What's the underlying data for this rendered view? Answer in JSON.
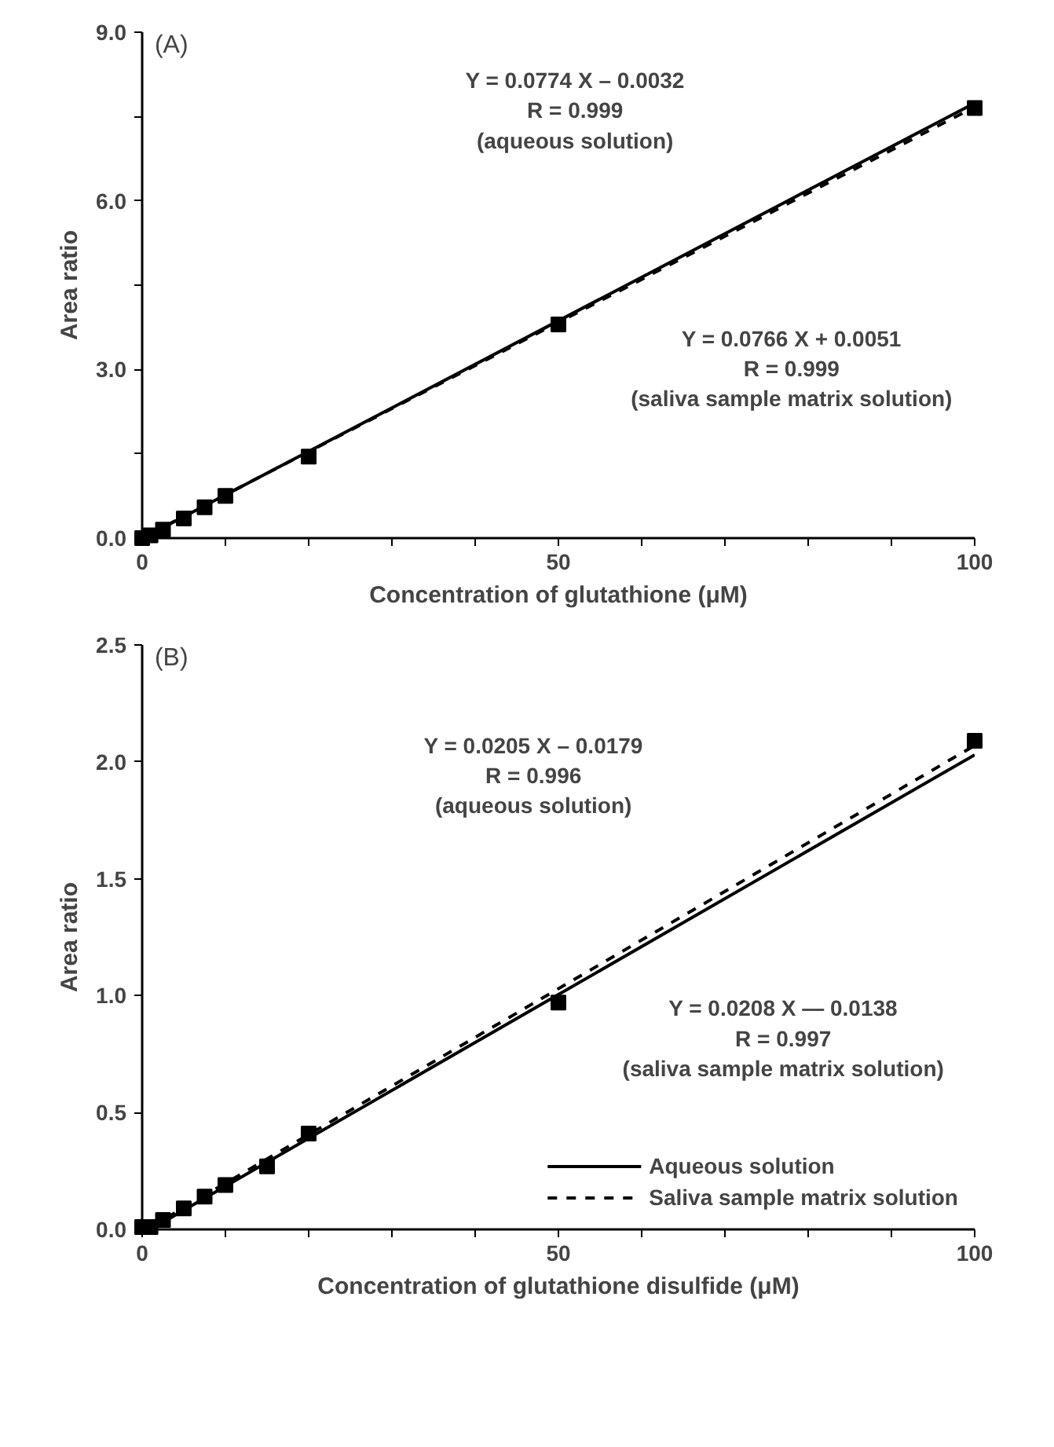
{
  "chart_data": [
    {
      "type": "scatter",
      "title": "(A)",
      "xlabel": "Concentration of glutathione (μM)",
      "ylabel": "Area ratio",
      "annotations": [
        "Y = 0.0774 X – 0.0032\nR = 0.999\n(aqueous solution)",
        "Y = 0.0766 X + 0.0051\nR = 0.999\n(saliva sample matrix solution)"
      ],
      "xlim": [
        0,
        100
      ],
      "xticks": [
        0,
        {
          "value": 10,
          "label": null
        },
        {
          "value": 20,
          "label": null
        },
        {
          "value": 30,
          "label": null
        },
        {
          "value": 40,
          "label": null
        },
        50,
        {
          "value": 60,
          "label": null
        },
        {
          "value": 70,
          "label": null
        },
        {
          "value": 80,
          "label": null
        },
        {
          "value": 90,
          "label": null
        },
        100
      ],
      "ylim": [
        0,
        9
      ],
      "yticks": [
        {
          "value": 0,
          "label": "0.0"
        },
        {
          "value": 1.5,
          "label": null
        },
        {
          "value": 3,
          "label": "3.0"
        },
        {
          "value": 4.5,
          "label": null
        },
        {
          "value": 6,
          "label": "6.0"
        },
        {
          "value": 7.5,
          "label": null
        },
        {
          "value": 9,
          "label": "9.0"
        }
      ],
      "grid": false,
      "legend": false,
      "series": [
        {
          "marker": "square",
          "color": "#000000",
          "x": [
            0,
            1,
            2.5,
            5,
            7.5,
            10,
            20,
            50,
            100
          ],
          "values": [
            0,
            0.05,
            0.15,
            0.35,
            0.55,
            0.75,
            1.45,
            3.8,
            7.65
          ]
        },
        {
          "type": "line",
          "color": "#000000",
          "line_style": "solid",
          "x": [
            1,
            100
          ],
          "values": [
            0.07,
            7.74
          ]
        },
        {
          "type": "line",
          "color": "#000000",
          "line_style": "dashed",
          "x": [
            1,
            100
          ],
          "values": [
            0.08,
            7.67
          ]
        }
      ]
    },
    {
      "type": "scatter",
      "title": "(B)",
      "xlabel": "Concentration of glutathione disulfide (μM)",
      "ylabel": "Area ratio",
      "annotations": [
        "Y = 0.0205 X – 0.0179\nR = 0.996\n(aqueous solution)",
        "Y = 0.0208 X — 0.0138\nR = 0.997\n(saliva sample matrix solution)"
      ],
      "xlim": [
        0,
        100
      ],
      "xticks": [
        0,
        {
          "value": 10,
          "label": null
        },
        {
          "value": 20,
          "label": null
        },
        {
          "value": 30,
          "label": null
        },
        {
          "value": 40,
          "label": null
        },
        50,
        {
          "value": 60,
          "label": null
        },
        {
          "value": 70,
          "label": null
        },
        {
          "value": 80,
          "label": null
        },
        {
          "value": 90,
          "label": null
        },
        100
      ],
      "ylim": [
        0,
        2.5
      ],
      "yticks": [
        {
          "value": 0,
          "label": "0.0"
        },
        {
          "value": 0.5,
          "label": "0.5"
        },
        {
          "value": 1,
          "label": "1.0"
        },
        {
          "value": 1.5,
          "label": "1.5"
        },
        {
          "value": 2,
          "label": "2.0"
        },
        {
          "value": 2.5,
          "label": "2.5"
        }
      ],
      "grid": false,
      "legend": "bottom right",
      "series": [
        {
          "marker": "square",
          "color": "#000000",
          "x": [
            0,
            1,
            2.5,
            5,
            7.5,
            10,
            15,
            20,
            50,
            100
          ],
          "values": [
            0.01,
            0.01,
            0.04,
            0.09,
            0.14,
            0.19,
            0.27,
            0.41,
            0.97,
            2.09
          ]
        },
        {
          "type": "line",
          "name": "Aqueous solution",
          "color": "#000000",
          "line_style": "solid",
          "x": [
            1,
            100
          ],
          "values": [
            0.0,
            2.03
          ]
        },
        {
          "type": "line",
          "name": "Saliva sample matrix solution",
          "color": "#000000",
          "line_style": "dashed",
          "x": [
            1,
            100
          ],
          "values": [
            0.01,
            2.07
          ]
        }
      ]
    }
  ]
}
